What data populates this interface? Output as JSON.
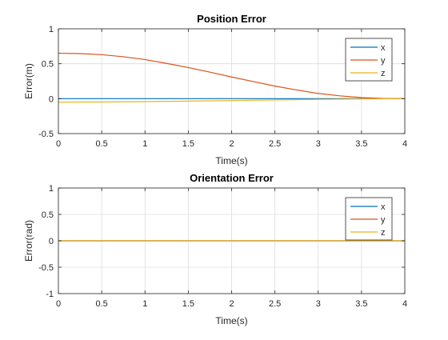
{
  "chart_data": [
    {
      "type": "line",
      "title": "Position Error",
      "xlabel": "Time(s)",
      "ylabel": "Error(m)",
      "xlim": [
        0,
        4
      ],
      "ylim": [
        -0.5,
        1
      ],
      "xticks": [
        0,
        0.5,
        1,
        1.5,
        2,
        2.5,
        3,
        3.5,
        4
      ],
      "xtick_labels": [
        "0",
        "0.5",
        "1",
        "1.5",
        "2",
        "2.5",
        "3",
        "3.5",
        "4"
      ],
      "yticks": [
        -0.5,
        0,
        0.5,
        1
      ],
      "ytick_labels": [
        "-0.5",
        "0",
        "0.5",
        "1"
      ],
      "grid": true,
      "legend_position": "top-right",
      "series": [
        {
          "name": "x",
          "color": "#0072BD",
          "x": [
            0,
            0.5,
            1,
            1.5,
            2,
            2.5,
            3,
            3.5,
            4
          ],
          "y": [
            0,
            0,
            0,
            0,
            0,
            0,
            0,
            0,
            0
          ]
        },
        {
          "name": "y",
          "color": "#D95319",
          "x": [
            0,
            0.25,
            0.5,
            0.75,
            1,
            1.25,
            1.5,
            1.75,
            2,
            2.25,
            2.5,
            2.75,
            3,
            3.25,
            3.5,
            3.75,
            4
          ],
          "y": [
            0.65,
            0.645,
            0.63,
            0.6,
            0.56,
            0.505,
            0.445,
            0.38,
            0.31,
            0.245,
            0.18,
            0.125,
            0.075,
            0.04,
            0.015,
            0.003,
            0
          ]
        },
        {
          "name": "z",
          "color": "#EDB120",
          "x": [
            0,
            0.5,
            1,
            1.5,
            2,
            2.5,
            3,
            3.5,
            4
          ],
          "y": [
            -0.05,
            -0.048,
            -0.042,
            -0.035,
            -0.027,
            -0.018,
            -0.01,
            -0.004,
            0
          ]
        }
      ]
    },
    {
      "type": "line",
      "title": "Orientation Error",
      "xlabel": "Time(s)",
      "ylabel": "Error(rad)",
      "xlim": [
        0,
        4
      ],
      "ylim": [
        -1,
        1
      ],
      "xticks": [
        0,
        0.5,
        1,
        1.5,
        2,
        2.5,
        3,
        3.5,
        4
      ],
      "xtick_labels": [
        "0",
        "0.5",
        "1",
        "1.5",
        "2",
        "2.5",
        "3",
        "3.5",
        "4"
      ],
      "yticks": [
        -1,
        -0.5,
        0,
        0.5,
        1
      ],
      "ytick_labels": [
        "-1",
        "-0.5",
        "0",
        "0.5",
        "1"
      ],
      "grid": true,
      "legend_position": "top-right",
      "series": [
        {
          "name": "x",
          "color": "#0072BD",
          "x": [
            0,
            1,
            2,
            3,
            4
          ],
          "y": [
            0,
            0,
            0,
            0,
            0
          ]
        },
        {
          "name": "y",
          "color": "#D95319",
          "x": [
            0,
            1,
            2,
            3,
            4
          ],
          "y": [
            0,
            0,
            0,
            0,
            0
          ]
        },
        {
          "name": "z",
          "color": "#EDB120",
          "x": [
            0,
            1,
            2,
            3,
            4
          ],
          "y": [
            0,
            0,
            0,
            0,
            0
          ]
        }
      ]
    }
  ]
}
